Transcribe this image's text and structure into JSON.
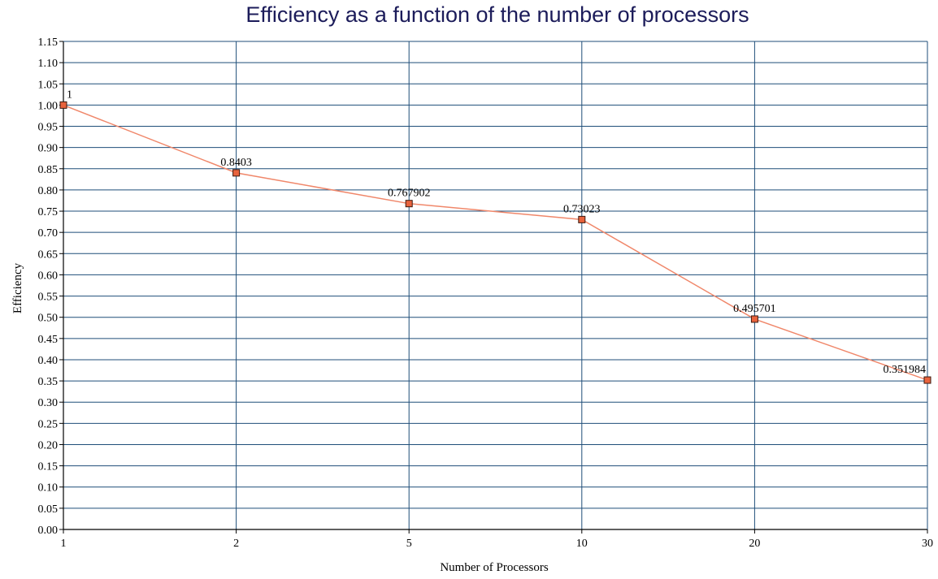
{
  "chart_data": {
    "type": "line",
    "title": "Efficiency as a function of the number of processors",
    "xlabel": "Number of Processors",
    "ylabel": "Efficiency",
    "categories": [
      "1",
      "2",
      "5",
      "10",
      "20",
      "30"
    ],
    "series": [
      {
        "values": [
          1,
          0.8403,
          0.767902,
          0.73023,
          0.495701,
          0.351984
        ],
        "data_labels": [
          "1",
          "0.8403",
          "0.767902",
          "0.73023",
          "0.495701",
          "0.351984"
        ]
      }
    ],
    "ylim": [
      0,
      1.15
    ],
    "ytick_step": 0.05,
    "ytick_labels": [
      "0.00",
      "0.05",
      "0.10",
      "0.15",
      "0.20",
      "0.25",
      "0.30",
      "0.35",
      "0.40",
      "0.45",
      "0.50",
      "0.55",
      "0.60",
      "0.65",
      "0.70",
      "0.75",
      "0.80",
      "0.85",
      "0.90",
      "0.95",
      "1.00",
      "1.05",
      "1.10",
      "1.15"
    ],
    "grid": true,
    "legend": "none",
    "colors": {
      "line": "#f0876a",
      "marker_fill": "#e8633d",
      "marker_stroke": "#3a1a10",
      "grid": "#1f4e79",
      "title": "#1c1c5a"
    }
  }
}
